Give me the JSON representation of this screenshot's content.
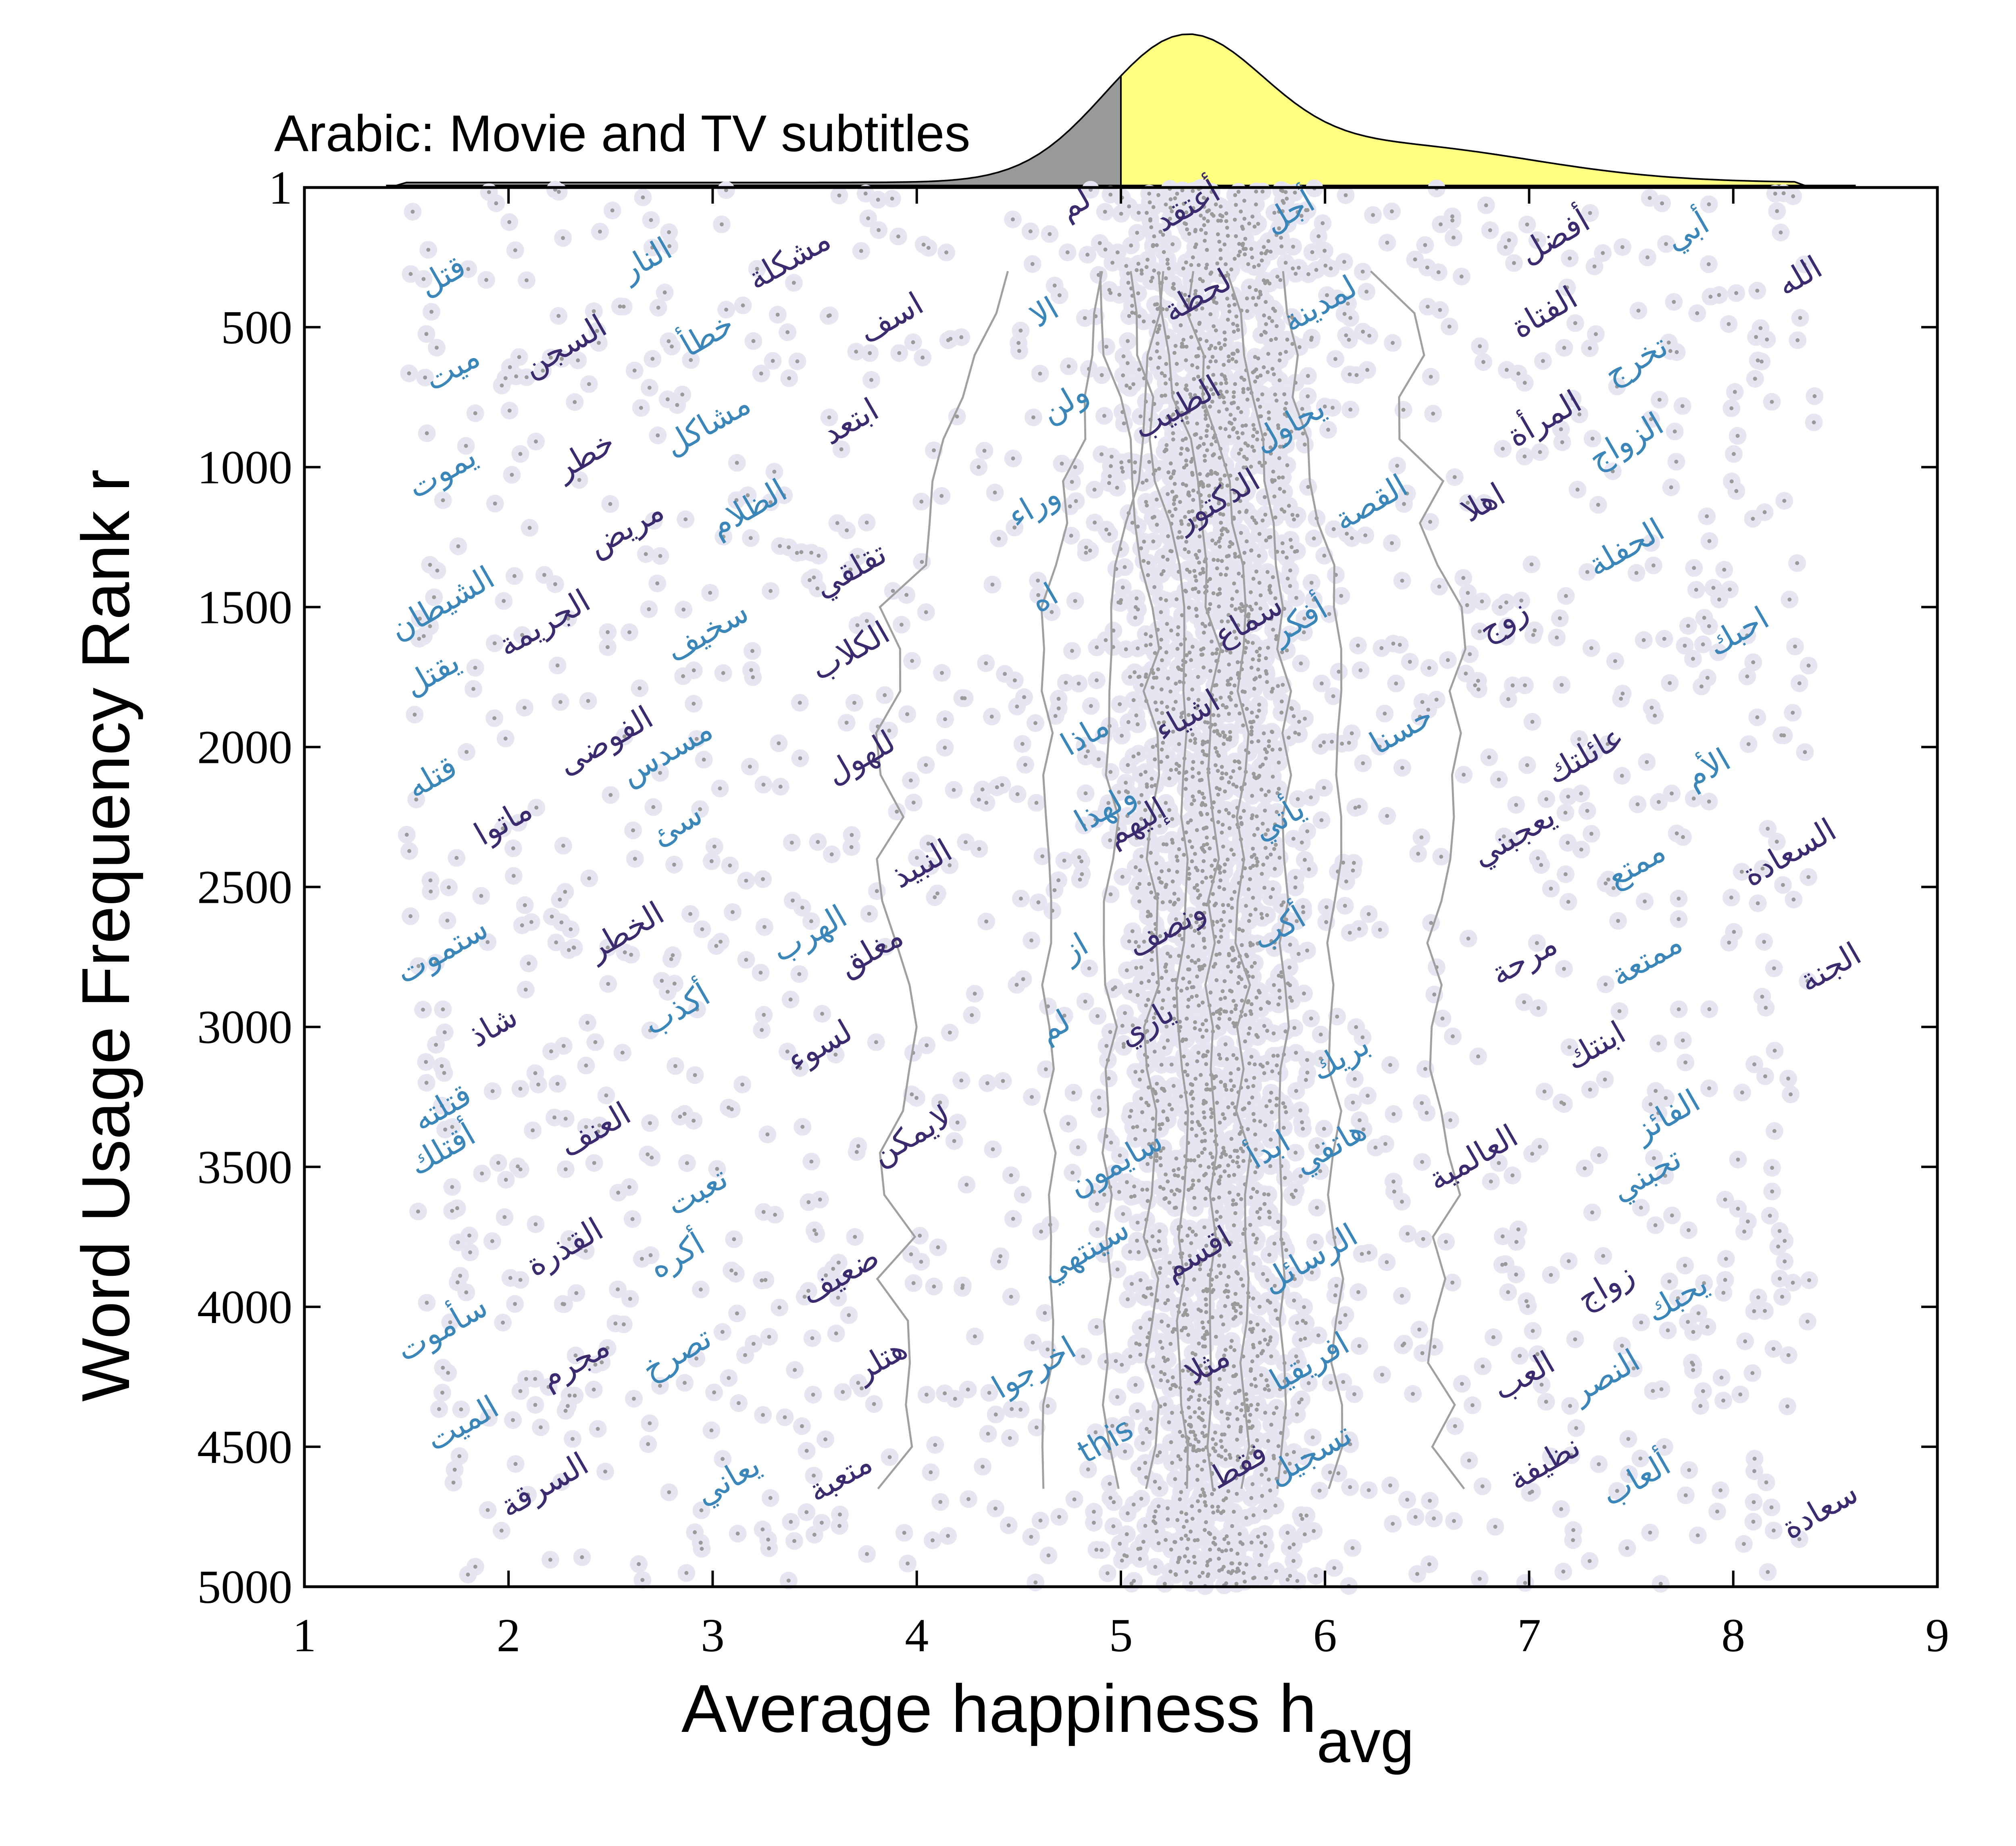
{
  "chart_data": {
    "type": "scatter",
    "title": "Arabic: Movie and TV subtitles",
    "xlabel": "Average happiness h",
    "xlabel_sub": "avg",
    "ylabel": "Word Usage Frequency Rank r",
    "xlim": [
      1,
      9
    ],
    "ylim": [
      1,
      5000
    ],
    "y_inverted": true,
    "xticks": [
      "1",
      "2",
      "3",
      "4",
      "5",
      "6",
      "7",
      "8",
      "9"
    ],
    "yticks": [
      "1",
      "500",
      "1000",
      "1500",
      "2000",
      "2500",
      "3000",
      "3500",
      "4000",
      "4500",
      "5000"
    ],
    "grid": false,
    "legend": "none",
    "colors": {
      "point_halo": "#e6e6f2",
      "point_dot": "#9a9a9a",
      "contour": "#a0a0a0",
      "word_dark": "#3b2a6e",
      "word_light": "#3a86b8",
      "hist_low": "#999999",
      "hist_high": "#ffff80"
    },
    "words": [
      {
        "t": "قتل",
        "h": 1.7,
        "r": 350,
        "c": "light"
      },
      {
        "t": "ميت",
        "h": 1.75,
        "r": 680,
        "c": "light"
      },
      {
        "t": "يموت",
        "h": 1.7,
        "r": 1050,
        "c": "light"
      },
      {
        "t": "الشيطان",
        "h": 1.7,
        "r": 1520,
        "c": "light"
      },
      {
        "t": "يقتل",
        "h": 1.65,
        "r": 1770,
        "c": "light"
      },
      {
        "t": "قتله",
        "h": 1.65,
        "r": 2140,
        "c": "light"
      },
      {
        "t": "ستموت",
        "h": 1.7,
        "r": 2760,
        "c": "light"
      },
      {
        "t": "قتلته",
        "h": 1.7,
        "r": 3320,
        "c": "light"
      },
      {
        "t": "أقتلك",
        "h": 1.7,
        "r": 3470,
        "c": "light"
      },
      {
        "t": "سأموت",
        "h": 1.7,
        "r": 4110,
        "c": "light"
      },
      {
        "t": "الميت",
        "h": 1.8,
        "r": 4450,
        "c": "light"
      },
      {
        "t": "النار",
        "h": 2.7,
        "r": 290,
        "c": "light"
      },
      {
        "t": "السجن",
        "h": 2.3,
        "r": 600,
        "c": "dark"
      },
      {
        "t": "خطر",
        "h": 2.4,
        "r": 990,
        "c": "dark"
      },
      {
        "t": "مريض",
        "h": 2.6,
        "r": 1250,
        "c": "dark"
      },
      {
        "t": "الجريمة",
        "h": 2.2,
        "r": 1590,
        "c": "dark"
      },
      {
        "t": "الفوضى",
        "h": 2.5,
        "r": 2010,
        "c": "dark"
      },
      {
        "t": "ماتوا",
        "h": 2.0,
        "r": 2300,
        "c": "dark"
      },
      {
        "t": "الخطر",
        "h": 2.6,
        "r": 2690,
        "c": "dark"
      },
      {
        "t": "شاذ",
        "h": 1.95,
        "r": 3030,
        "c": "dark"
      },
      {
        "t": "العنف",
        "h": 2.45,
        "r": 3400,
        "c": "dark"
      },
      {
        "t": "القذرة",
        "h": 2.3,
        "r": 3820,
        "c": "dark"
      },
      {
        "t": "مجرم",
        "h": 2.35,
        "r": 4230,
        "c": "dark"
      },
      {
        "t": "السرقة",
        "h": 2.2,
        "r": 4670,
        "c": "dark"
      },
      {
        "t": "مشكلة",
        "h": 3.4,
        "r": 290,
        "c": "dark"
      },
      {
        "t": "خطأ",
        "h": 3.0,
        "r": 560,
        "c": "light"
      },
      {
        "t": "مشاكل",
        "h": 3.0,
        "r": 880,
        "c": "light"
      },
      {
        "t": "الظلام",
        "h": 3.2,
        "r": 1180,
        "c": "light"
      },
      {
        "t": "سخيف",
        "h": 3.0,
        "r": 1620,
        "c": "light"
      },
      {
        "t": "مسدس",
        "h": 2.8,
        "r": 2050,
        "c": "light"
      },
      {
        "t": "سئ",
        "h": 2.85,
        "r": 2310,
        "c": "light"
      },
      {
        "t": "أكذب",
        "h": 2.85,
        "r": 2970,
        "c": "light"
      },
      {
        "t": "تعبت",
        "h": 2.95,
        "r": 3620,
        "c": "light"
      },
      {
        "t": "أكره",
        "h": 2.85,
        "r": 3850,
        "c": "light"
      },
      {
        "t": "تصرخ",
        "h": 2.85,
        "r": 4200,
        "c": "light"
      },
      {
        "t": "يعاني",
        "h": 3.1,
        "r": 4650,
        "c": "light"
      },
      {
        "t": "ابتعد",
        "h": 3.7,
        "r": 870,
        "c": "dark"
      },
      {
        "t": "اسف",
        "h": 3.9,
        "r": 500,
        "c": "dark"
      },
      {
        "t": "تقلقي",
        "h": 3.7,
        "r": 1400,
        "c": "dark"
      },
      {
        "t": "الكلاب",
        "h": 3.7,
        "r": 1690,
        "c": "dark"
      },
      {
        "t": "للهول",
        "h": 3.75,
        "r": 2070,
        "c": "dark"
      },
      {
        "t": "النبيذ",
        "h": 4.05,
        "r": 2450,
        "c": "dark"
      },
      {
        "t": "الهرب",
        "h": 3.5,
        "r": 2700,
        "c": "light"
      },
      {
        "t": "مغلق",
        "h": 3.8,
        "r": 2760,
        "c": "dark"
      },
      {
        "t": "لسوء",
        "h": 3.55,
        "r": 3100,
        "c": "dark"
      },
      {
        "t": "لايمكن",
        "h": 4.0,
        "r": 3420,
        "c": "dark"
      },
      {
        "t": "ضعيف",
        "h": 3.65,
        "r": 3920,
        "c": "dark"
      },
      {
        "t": "هتلر",
        "h": 3.85,
        "r": 4220,
        "c": "dark"
      },
      {
        "t": "متعبة",
        "h": 3.65,
        "r": 4640,
        "c": "dark"
      },
      {
        "t": "لم",
        "h": 4.8,
        "r": 90,
        "c": "dark"
      },
      {
        "t": "الا",
        "h": 4.65,
        "r": 480,
        "c": "light"
      },
      {
        "t": "ولن",
        "h": 4.75,
        "r": 800,
        "c": "light"
      },
      {
        "t": "وراء",
        "h": 4.6,
        "r": 1170,
        "c": "light"
      },
      {
        "t": "اه",
        "h": 4.65,
        "r": 1500,
        "c": "light"
      },
      {
        "t": "ماذا",
        "h": 4.85,
        "r": 1990,
        "c": "light"
      },
      {
        "t": "ولهذا",
        "h": 4.95,
        "r": 2250,
        "c": "light"
      },
      {
        "t": "از",
        "h": 4.8,
        "r": 2750,
        "c": "light"
      },
      {
        "t": "لم",
        "h": 4.7,
        "r": 3030,
        "c": "light"
      },
      {
        "t": "سايمون",
        "h": 5.0,
        "r": 3520,
        "c": "light"
      },
      {
        "t": "سينتهي",
        "h": 4.85,
        "r": 3830,
        "c": "light"
      },
      {
        "t": "اخرجوا",
        "h": 4.6,
        "r": 4250,
        "c": "light"
      },
      {
        "t": "this",
        "h": 4.95,
        "r": 4510,
        "c": "light"
      },
      {
        "t": "أعتقد",
        "h": 5.35,
        "r": 100,
        "c": "dark"
      },
      {
        "t": "لحظة",
        "h": 5.4,
        "r": 420,
        "c": "dark"
      },
      {
        "t": "الطبيب",
        "h": 5.3,
        "r": 820,
        "c": "dark"
      },
      {
        "t": "الدكتور",
        "h": 5.5,
        "r": 1150,
        "c": "dark"
      },
      {
        "t": "سماع",
        "h": 5.65,
        "r": 1580,
        "c": "dark"
      },
      {
        "t": "اشياء",
        "h": 5.35,
        "r": 1920,
        "c": "dark"
      },
      {
        "t": "إليهم",
        "h": 5.1,
        "r": 2300,
        "c": "dark"
      },
      {
        "t": "ونصف",
        "h": 5.25,
        "r": 2680,
        "c": "dark"
      },
      {
        "t": "ياري",
        "h": 5.15,
        "r": 3020,
        "c": "dark"
      },
      {
        "t": "اقسم",
        "h": 5.4,
        "r": 3840,
        "c": "dark"
      },
      {
        "t": "مثلا",
        "h": 5.45,
        "r": 4240,
        "c": "dark"
      },
      {
        "t": "أجل",
        "h": 5.85,
        "r": 120,
        "c": "light"
      },
      {
        "t": "لمدينة",
        "h": 6.0,
        "r": 450,
        "c": "light"
      },
      {
        "t": "يحاول",
        "h": 5.85,
        "r": 880,
        "c": "light"
      },
      {
        "t": "أفكر",
        "h": 5.9,
        "r": 1580,
        "c": "light"
      },
      {
        "t": "يأتي",
        "h": 5.8,
        "r": 2290,
        "c": "light"
      },
      {
        "t": "أكب",
        "h": 5.8,
        "r": 2680,
        "c": "light"
      },
      {
        "t": "بريك",
        "h": 6.1,
        "r": 3140,
        "c": "light"
      },
      {
        "t": "ابدأ",
        "h": 5.75,
        "r": 3470,
        "c": "light"
      },
      {
        "t": "هاتفي",
        "h": 6.05,
        "r": 3460,
        "c": "light"
      },
      {
        "t": "الرسائل",
        "h": 5.95,
        "r": 3860,
        "c": "light"
      },
      {
        "t": "افريقيا",
        "h": 5.95,
        "r": 4230,
        "c": "light"
      },
      {
        "t": "تسجيل",
        "h": 5.95,
        "r": 4560,
        "c": "light"
      },
      {
        "t": "فقط",
        "h": 5.6,
        "r": 4600,
        "c": "dark"
      },
      {
        "t": "القصة",
        "h": 6.25,
        "r": 1160,
        "c": "light"
      },
      {
        "t": "حسنا",
        "h": 6.4,
        "r": 1970,
        "c": "light"
      },
      {
        "t": "العالمية",
        "h": 6.75,
        "r": 3500,
        "c": "dark"
      },
      {
        "t": "أفضل",
        "h": 7.15,
        "r": 210,
        "c": "dark"
      },
      {
        "t": "الفتاة",
        "h": 7.1,
        "r": 480,
        "c": "dark"
      },
      {
        "t": "المرأة",
        "h": 7.1,
        "r": 860,
        "c": "dark"
      },
      {
        "t": "اهلا",
        "h": 6.8,
        "r": 1160,
        "c": "dark"
      },
      {
        "t": "زوج",
        "h": 6.9,
        "r": 1580,
        "c": "dark"
      },
      {
        "t": "عائلتك",
        "h": 7.3,
        "r": 2060,
        "c": "dark"
      },
      {
        "t": "يعجبني",
        "h": 6.95,
        "r": 2350,
        "c": "dark"
      },
      {
        "t": "مرحة",
        "h": 7.0,
        "r": 2790,
        "c": "dark"
      },
      {
        "t": "ابنتك",
        "h": 7.35,
        "r": 3100,
        "c": "dark"
      },
      {
        "t": "العب",
        "h": 7.0,
        "r": 4280,
        "c": "dark"
      },
      {
        "t": "نظيفة",
        "h": 7.1,
        "r": 4590,
        "c": "dark"
      },
      {
        "t": "زواج",
        "h": 7.4,
        "r": 3960,
        "c": "dark"
      },
      {
        "t": "أبي",
        "h": 7.8,
        "r": 190,
        "c": "light"
      },
      {
        "t": "تخرج",
        "h": 7.55,
        "r": 650,
        "c": "light"
      },
      {
        "t": "الزواج",
        "h": 7.5,
        "r": 940,
        "c": "light"
      },
      {
        "t": "الحفلة",
        "h": 7.5,
        "r": 1320,
        "c": "light"
      },
      {
        "t": "احبك",
        "h": 8.05,
        "r": 1620,
        "c": "light"
      },
      {
        "t": "الأم",
        "h": 7.9,
        "r": 2110,
        "c": "light"
      },
      {
        "t": "ممتع",
        "h": 7.55,
        "r": 2450,
        "c": "light"
      },
      {
        "t": "ممتعة",
        "h": 7.6,
        "r": 2790,
        "c": "light"
      },
      {
        "t": "الفائز",
        "h": 7.7,
        "r": 3350,
        "c": "light"
      },
      {
        "t": "تحبني",
        "h": 7.6,
        "r": 3560,
        "c": "light"
      },
      {
        "t": "يحبك",
        "h": 7.75,
        "r": 4000,
        "c": "light"
      },
      {
        "t": "النصر",
        "h": 7.4,
        "r": 4280,
        "c": "light"
      },
      {
        "t": "ألعاب",
        "h": 7.55,
        "r": 4650,
        "c": "light"
      },
      {
        "t": "الله",
        "h": 8.35,
        "r": 350,
        "c": "dark"
      },
      {
        "t": "السعادة",
        "h": 8.3,
        "r": 2410,
        "c": "dark"
      },
      {
        "t": "الجنة",
        "h": 8.5,
        "r": 2820,
        "c": "dark"
      },
      {
        "t": "سعادة",
        "h": 8.45,
        "r": 4760,
        "c": "dark"
      }
    ]
  }
}
